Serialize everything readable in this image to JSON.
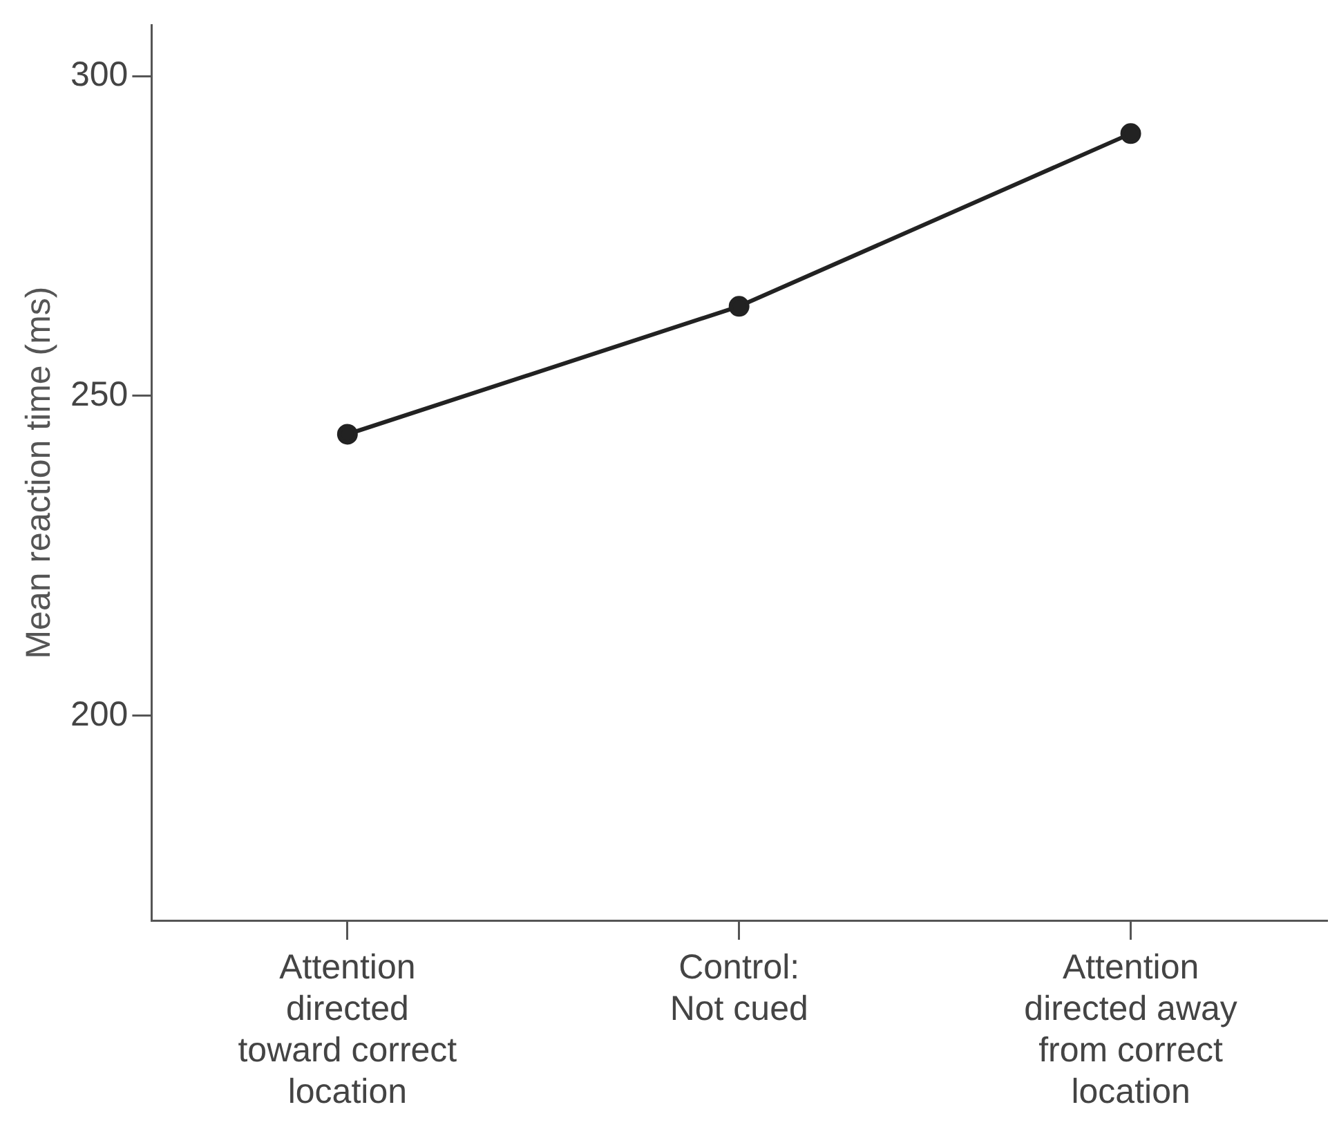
{
  "chart_data": {
    "type": "line",
    "ylabel": "Mean reaction time (ms)",
    "categories": [
      "Attention\ndirected\ntoward correct\nlocation",
      "Control:\nNot cued",
      "Attention\ndirected away\nfrom correct\nlocation"
    ],
    "series": [
      {
        "color": "#222222",
        "values": [
          244,
          264,
          291
        ]
      }
    ],
    "ylim": [
      168,
      308
    ],
    "yticks": [
      200,
      250,
      300
    ],
    "grid": false,
    "legend": false,
    "marker": "circle",
    "line_style": "solid"
  }
}
